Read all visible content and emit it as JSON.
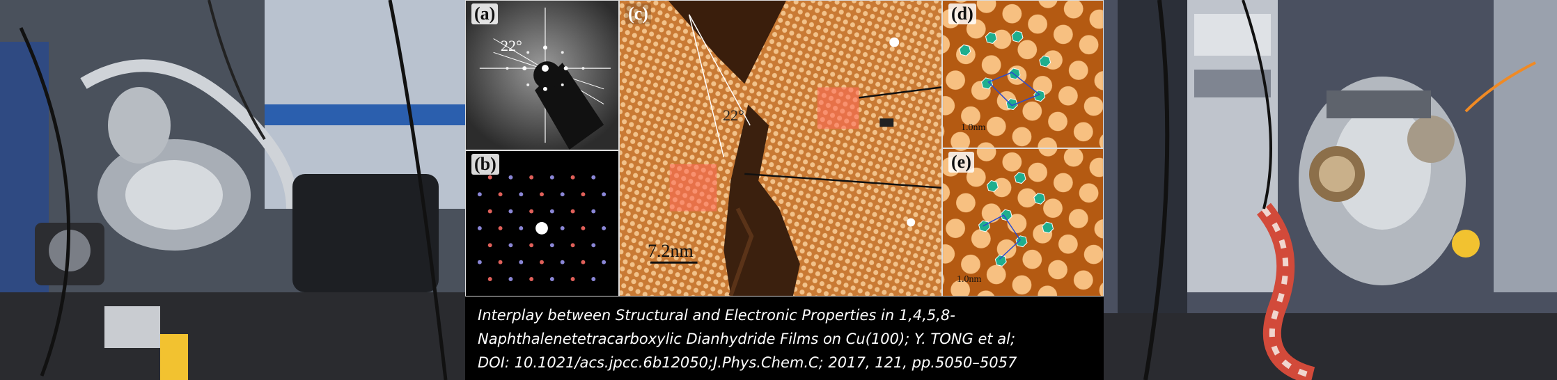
{
  "panels": {
    "a": {
      "label": "(a)",
      "angle": "22°"
    },
    "b": {
      "label": "(b)"
    },
    "c": {
      "label": "(c)",
      "angle": "22°",
      "scale": "7.2nm"
    },
    "d": {
      "label": "(d)",
      "scale": "1.0nm"
    },
    "e": {
      "label": "(e)",
      "scale": "1.0nm"
    }
  },
  "caption": {
    "line1": "Interplay between Structural and Electronic Properties in 1,4,5,8-",
    "line2": "Naphthalenetetracarboxylic Dianhydride Films on Cu(100);  Y. TONG et al;",
    "line3": "DOI: 10.1021/acs.jpcc.6b12050;J.Phys.Chem.C; 2017, 121, pp.5050–5057"
  }
}
